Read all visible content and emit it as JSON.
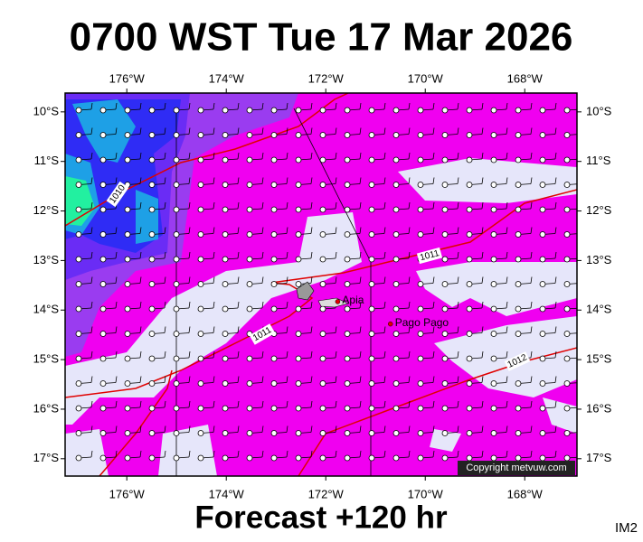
{
  "map": {
    "title": "0700 WST Tue 17 Mar 2026",
    "subtitle": "Forecast +120 hr",
    "corner_label": "IM2",
    "copyright": "Copyright metvuw.com",
    "xlim": [
      -177.24,
      -166.95
    ],
    "ylim": [
      -17.35,
      -9.62
    ],
    "xticks": [
      {
        "value": -176,
        "label": "176°W"
      },
      {
        "value": -174,
        "label": "174°W"
      },
      {
        "value": -172,
        "label": "172°W"
      },
      {
        "value": -170,
        "label": "170°W"
      },
      {
        "value": -168,
        "label": "168°W"
      }
    ],
    "yticks": [
      {
        "value": -10,
        "label": "10°S"
      },
      {
        "value": -11,
        "label": "11°S"
      },
      {
        "value": -12,
        "label": "12°S"
      },
      {
        "value": -13,
        "label": "13°S"
      },
      {
        "value": -14,
        "label": "14°S"
      },
      {
        "value": -15,
        "label": "15°S"
      },
      {
        "value": -16,
        "label": "16°S"
      },
      {
        "value": -17,
        "label": "17°S"
      }
    ],
    "places": [
      {
        "name": "Apia",
        "lon": -171.76,
        "lat": -13.83
      },
      {
        "name": "Pago Pago",
        "lon": -170.7,
        "lat": -14.28
      }
    ],
    "isobar_labels": [
      "1010",
      "1011",
      "1011",
      "1012"
    ]
  }
}
